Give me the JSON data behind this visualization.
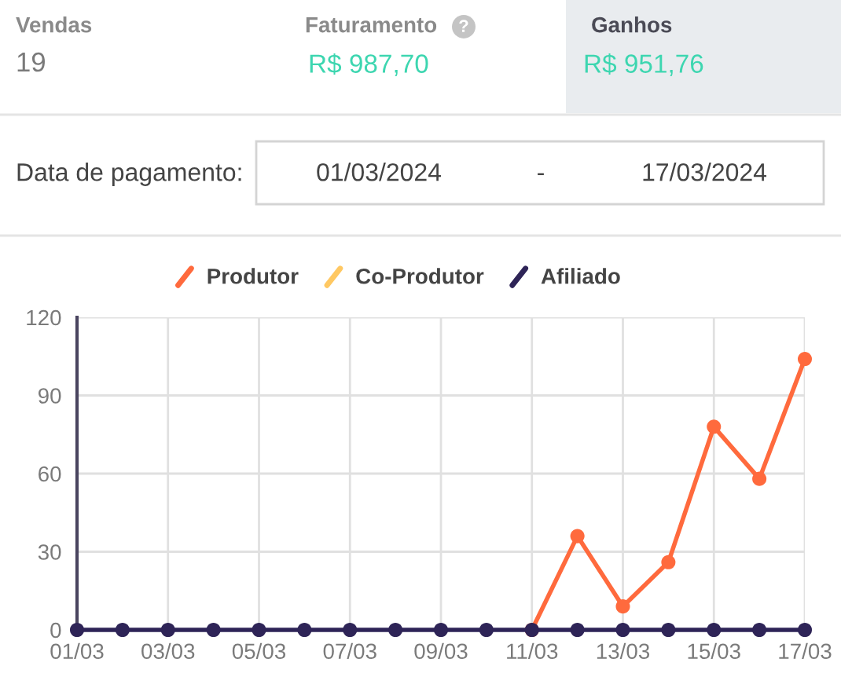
{
  "chart_data": {
    "type": "line",
    "categories": [
      "01/03",
      null,
      "03/03",
      null,
      "05/03",
      null,
      "07/03",
      null,
      "09/03",
      null,
      "11/03",
      null,
      "13/03",
      null,
      "15/03",
      null,
      "17/03"
    ],
    "series": [
      {
        "name": "Produtor",
        "color": "#ff6a3d",
        "values": [
          null,
          null,
          null,
          null,
          null,
          null,
          null,
          null,
          null,
          null,
          0,
          36,
          9,
          26,
          78,
          58,
          104
        ]
      },
      {
        "name": "Co-Produtor",
        "color": "#ffc862",
        "values": [
          null,
          null,
          null,
          null,
          null,
          null,
          null,
          null,
          null,
          null,
          null,
          null,
          null,
          null,
          null,
          null,
          null
        ]
      },
      {
        "name": "Afiliado",
        "color": "#2e2457",
        "values": [
          0,
          0,
          0,
          0,
          0,
          0,
          0,
          0,
          0,
          0,
          0,
          0,
          0,
          0,
          0,
          0,
          0
        ]
      }
    ],
    "ylim": [
      0,
      120
    ],
    "yticks": [
      0,
      30,
      60,
      90,
      120
    ],
    "grid": true,
    "legend": "top",
    "marker": "circle",
    "line_style": "solid",
    "annotations": [
      "Vendas",
      "19",
      "Faturamento",
      "?",
      "R$ 987,70",
      "Ganhos",
      "R$ 951,76",
      "Data de pagamento:",
      "01/03/2024",
      "-",
      "17/03/2024"
    ]
  }
}
